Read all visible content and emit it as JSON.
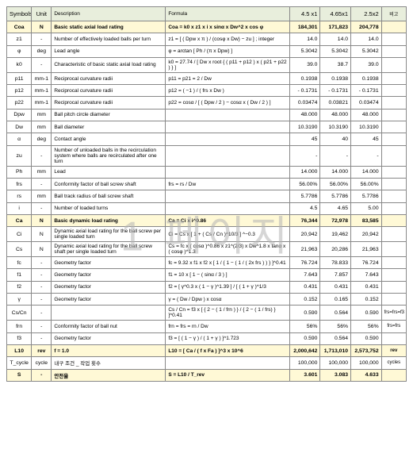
{
  "watermark": "1 페이지",
  "header": {
    "symbols": "Symbols",
    "unit": "Unit",
    "description": "Description",
    "formula": "Formula",
    "col1": "4.5 x1",
    "col2": "4.65x1",
    "col3": "2.5x2",
    "note": "비고"
  },
  "rows": [
    {
      "hl": true,
      "sym": "Coa",
      "unit": "N",
      "desc": "Basic static axial load rating",
      "form": "Coa = k0 x z1 x i x sinα x Dw^2 x cos φ",
      "v1": "184,301",
      "v2": "171,823",
      "v3": "204,778",
      "note": ""
    },
    {
      "sym": "z1",
      "unit": "-",
      "desc": "Number of effectively loaded balls per turn",
      "form": "z1 = [ ( Dpw x π ) / (cosφ x Dw) − zu ] ; integer",
      "v1": "14.0",
      "v2": "14.0",
      "v3": "14.0",
      "note": ""
    },
    {
      "sym": "φ",
      "unit": "deg",
      "desc": "Lead angle",
      "form": "φ = arctan [ Ph / (π x Dpw) ]",
      "v1": "5.3042",
      "v2": "5.3042",
      "v3": "5.3042",
      "note": ""
    },
    {
      "sym": "k0",
      "unit": "-",
      "desc": "Characteristic of basic static axial load rating",
      "form": "k0 = 27.74 / [ Dw x root { ( p11 + p12 ) x ( p21 + p22 ) } ]",
      "v1": "39.0",
      "v2": "38.7",
      "v3": "39.0",
      "note": ""
    },
    {
      "sym": "p11",
      "unit": "mm-1",
      "desc": "Reciprocal curvature radii",
      "form": "p11 = p21 = 2 / Dw",
      "v1": "0.1938",
      "v2": "0.1938",
      "v3": "0.1938",
      "note": ""
    },
    {
      "sym": "p12",
      "unit": "mm-1",
      "desc": "Reciprocal curvature radii",
      "form": "p12 = ( −1 ) / ( frs x Dw )",
      "v1": "- 0.1731",
      "v2": "- 0.1731",
      "v3": "- 0.1731",
      "note": ""
    },
    {
      "sym": "p22",
      "unit": "mm-1",
      "desc": "Reciprocal curvature radii",
      "form": "p22 = cosα / [ ( Dpw / 2 ) − cosα x ( Dw / 2 ) ]",
      "v1": "0.03474",
      "v2": "0.03821",
      "v3": "0.03474",
      "note": ""
    },
    {
      "sym": "Dpw",
      "unit": "mm",
      "desc": "Ball pitch circle diameter",
      "form": "",
      "v1": "48.000",
      "v2": "48.000",
      "v3": "48.000",
      "note": ""
    },
    {
      "sym": "Dw",
      "unit": "mm",
      "desc": "Ball diameter",
      "form": "",
      "v1": "10.3190",
      "v2": "10.3190",
      "v3": "10.3190",
      "note": ""
    },
    {
      "sym": "α",
      "unit": "deg",
      "desc": "Contact angle",
      "form": "",
      "v1": "45",
      "v2": "40",
      "v3": "45",
      "note": ""
    },
    {
      "sym": "zu",
      "unit": "-",
      "desc": "Number of unloaded balls in the recirculation system where balls are recirculated after one turn",
      "form": "",
      "v1": "-",
      "v2": "-",
      "v3": "-",
      "note": ""
    },
    {
      "sym": "Ph",
      "unit": "mm",
      "desc": "Lead",
      "form": "",
      "v1": "14.000",
      "v2": "14.000",
      "v3": "14.000",
      "note": ""
    },
    {
      "sym": "frs",
      "unit": "-",
      "desc": "Conformity factor of ball screw shaft",
      "form": "frs = rs / Dw",
      "v1": "56.00%",
      "v2": "56.00%",
      "v3": "56.00%",
      "note": ""
    },
    {
      "sym": "rs",
      "unit": "mm",
      "desc": "Ball track radius of ball screw shaft",
      "form": "",
      "v1": "5.7786",
      "v2": "5.7786",
      "v3": "5.7786",
      "note": ""
    },
    {
      "sym": "i",
      "unit": "-",
      "desc": "Number of loaded turns",
      "form": "",
      "v1": "4.5",
      "v2": "4.65",
      "v3": "5.00",
      "note": ""
    },
    {
      "hl": true,
      "sym": "Ca",
      "unit": "N",
      "desc": "Basic dynamic load rating",
      "form": "Ca = Ci x i^0.86",
      "v1": "76,344",
      "v2": "72,978",
      "v3": "83,585",
      "note": ""
    },
    {
      "sym": "Ci",
      "unit": "N",
      "desc": "Dynamic axial load rating for the ball screw per single loaded turn",
      "form": "Ci = Cs x [ 1 + ( Cs / Cn )^10/3 ] ^−0.3",
      "v1": "20,942",
      "v2": "19,462",
      "v3": "20,942",
      "note": ""
    },
    {
      "sym": "Cs",
      "unit": "N",
      "desc": "Dynamic axial load rating for the ball screw shaft per single loaded turn",
      "form": "Cs = fc x ( cosα )^0.86 x z1^(2/3) x Dw^1.8 x tanα x ( cosφ )^1.3",
      "v1": "21,963",
      "v2": "20,286",
      "v3": "21,963",
      "note": ""
    },
    {
      "sym": "fc",
      "unit": "-",
      "desc": "Geometry factor",
      "form": "fc = 9.32 x f1 x f2 x [ 1 / { 1 − ( 1 / ( 2x frs ) ) } ]^0.41",
      "v1": "76.724",
      "v2": "78.833",
      "v3": "76.724",
      "note": ""
    },
    {
      "sym": "f1",
      "unit": "-",
      "desc": "Geometry factor",
      "form": "f1 = 10 x [ 1 − ( sinα / 3 ) ]",
      "v1": "7.643",
      "v2": "7.857",
      "v3": "7.643",
      "note": ""
    },
    {
      "sym": "f2",
      "unit": "-",
      "desc": "Geometry factor",
      "form": "f2 = [ γ^0.3 x ( 1 − γ )^1.39 ] / [ ( 1 + γ )^1/3",
      "v1": "0.431",
      "v2": "0.431",
      "v3": "0.431",
      "note": ""
    },
    {
      "sym": "γ",
      "unit": "-",
      "desc": "Geometry factor",
      "form": "γ = ( Dw / Dpw ) x cosα",
      "v1": "0.152",
      "v2": "0.165",
      "v3": "0.152",
      "note": ""
    },
    {
      "sym": "Cs/Cn",
      "unit": "-",
      "desc": "",
      "form": "Cs / Cn = f3 x [ { 2 − ( 1 / frn ) } / { 2 − ( 1 / frs) } ]^0.41",
      "v1": "0.590",
      "v2": "0.564",
      "v3": "0.590",
      "note": "frs=frs=f3"
    },
    {
      "sym": "frn",
      "unit": "-",
      "desc": "Conformity factor of ball nut",
      "form": "frn = frs = rn / Dw",
      "v1": "56%",
      "v2": "56%",
      "v3": "56%",
      "note": "frs=frs"
    },
    {
      "sym": "f3",
      "unit": "-",
      "desc": "Geometry factor",
      "form": "f3 = [ ( 1 − γ ) / ( 1 + γ ) ]^1.723",
      "v1": "0.590",
      "v2": "0.564",
      "v3": "0.590",
      "note": ""
    },
    {
      "hl": true,
      "sym": "L10",
      "unit": "rev",
      "desc": "f = 1.0",
      "form": "L10 = [ Ca / ( f x Fa ) ]^3 x 10^6",
      "v1": "2,000,642",
      "v2": "1,713,010",
      "v3": "2,573,752",
      "note": "rev"
    },
    {
      "sym": "T_cycle",
      "unit": "cycle",
      "desc": "내구 조건 _ 작업 횟수",
      "form": "",
      "v1": "100,000",
      "v2": "100,000",
      "v3": "100,000",
      "note": "cycles"
    },
    {
      "hl": true,
      "sym": "S",
      "unit": "-",
      "desc": "안전율",
      "form": "S = L10 / T_rev",
      "v1": "3.601",
      "v2": "3.083",
      "v3": "4.633",
      "note": ""
    }
  ]
}
